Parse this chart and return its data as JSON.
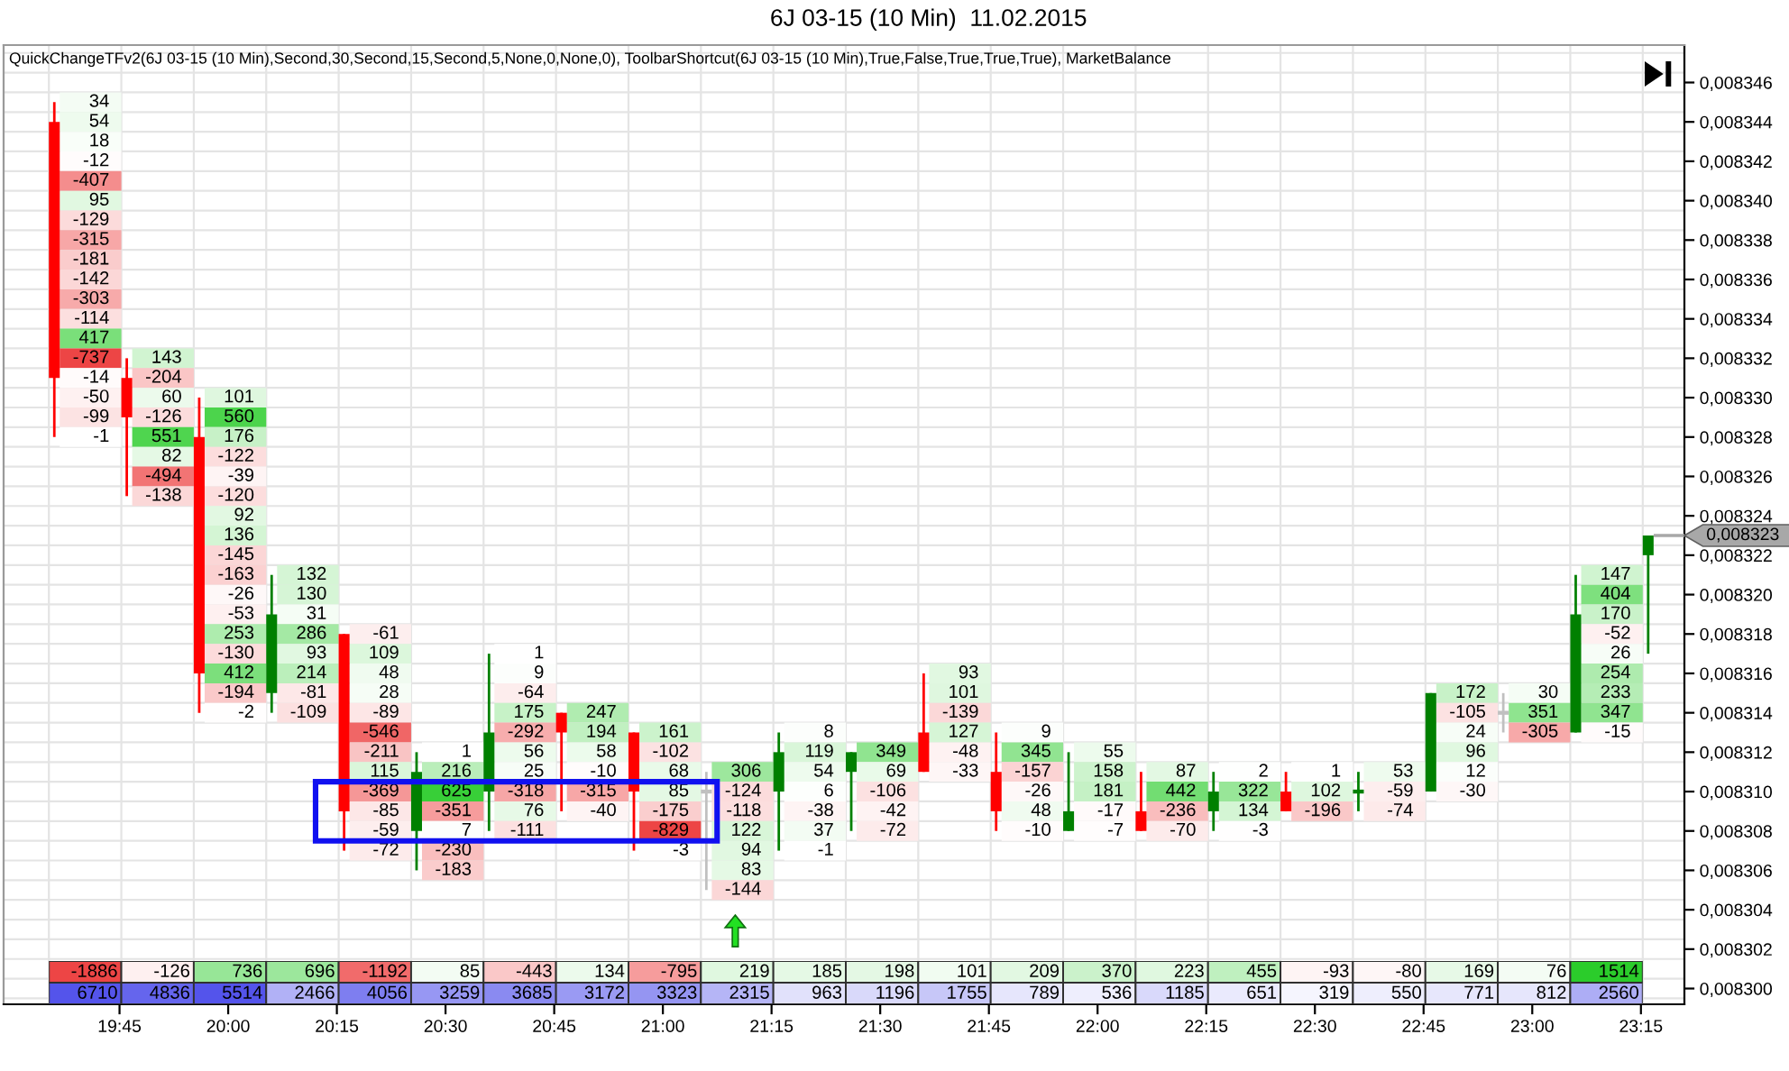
{
  "chart_data": [
    {
      "type": "candlestick",
      "title": "6J 03-15 (10 Min)  11.02.2015",
      "subtitle": "QuickChangeTFv2(6J 03-15 (10 Min),Second,30,Second,15,Second,5,None,0,None,0), ToolbarShortcut(6J 03-15 (10 Min),True,False,True,True,True), MarketBalance",
      "x": [
        "2015-02-11T19:36",
        "2015-02-11T19:46",
        "2015-02-11T19:56",
        "2015-02-11T20:06",
        "2015-02-11T20:16",
        "2015-02-11T20:26",
        "2015-02-11T20:36",
        "2015-02-11T20:46",
        "2015-02-11T20:56",
        "2015-02-11T21:06",
        "2015-02-11T21:16",
        "2015-02-11T21:26",
        "2015-02-11T21:36",
        "2015-02-11T21:46",
        "2015-02-11T21:56",
        "2015-02-11T22:06",
        "2015-02-11T22:16",
        "2015-02-11T22:26",
        "2015-02-11T22:36",
        "2015-02-11T22:46",
        "2015-02-11T22:56",
        "2015-02-11T23:06",
        "2015-02-11T23:16"
      ],
      "ohlc": [
        [
          0.008344,
          0.008345,
          0.008328,
          0.008331
        ],
        [
          0.008331,
          0.008332,
          0.008325,
          0.008329
        ],
        [
          0.008328,
          0.00833,
          0.008314,
          0.008316
        ],
        [
          0.008315,
          0.008321,
          0.008314,
          0.008319
        ],
        [
          0.008318,
          0.008318,
          0.008307,
          0.008309
        ],
        [
          0.008308,
          0.008312,
          0.008306,
          0.008311
        ],
        [
          0.00831,
          0.008317,
          0.008308,
          0.008313
        ],
        [
          0.008314,
          0.008314,
          0.008309,
          0.008313
        ],
        [
          0.008313,
          0.008313,
          0.008307,
          0.00831
        ],
        [
          0.00831,
          0.008311,
          0.008305,
          0.00831
        ],
        [
          0.00831,
          0.008313,
          0.008307,
          0.008312
        ],
        [
          0.008311,
          0.008312,
          0.008308,
          0.008312
        ],
        [
          0.008313,
          0.008316,
          0.008311,
          0.008311
        ],
        [
          0.008311,
          0.008313,
          0.008308,
          0.008309
        ],
        [
          0.008308,
          0.008312,
          0.008308,
          0.008309
        ],
        [
          0.008309,
          0.008311,
          0.008308,
          0.008308
        ],
        [
          0.008309,
          0.008311,
          0.008308,
          0.00831
        ],
        [
          0.00831,
          0.008311,
          0.008309,
          0.008309
        ],
        [
          0.00831,
          0.008311,
          0.008309,
          0.00831
        ],
        [
          0.00831,
          0.008315,
          0.00831,
          0.008315
        ],
        [
          0.008314,
          0.008315,
          0.008313,
          0.008314
        ],
        [
          0.008313,
          0.008321,
          0.008313,
          0.008319
        ],
        [
          0.008322,
          0.008323,
          0.008317,
          0.008323
        ]
      ],
      "colors": [
        "#ff0000",
        "#ff0000",
        "#ff0000",
        "#008000",
        "#ff0000",
        "#008000",
        "#008000",
        "#ff0000",
        "#ff0000",
        "#c0c0c0",
        "#008000",
        "#008000",
        "#ff0000",
        "#ff0000",
        "#008000",
        "#ff0000",
        "#008000",
        "#ff0000",
        "#008000",
        "#008000",
        "#c0c0c0",
        "#008000",
        "#008000"
      ],
      "xlim": [
        "2015-02-11T19:29",
        "2015-02-11T23:21"
      ],
      "xticks": [
        {
          "value": "2015-02-11T19:45",
          "label": "19:45"
        },
        {
          "value": "2015-02-11T20:00",
          "label": "20:00"
        },
        {
          "value": "2015-02-11T20:15",
          "label": "20:15"
        },
        {
          "value": "2015-02-11T20:30",
          "label": "20:30"
        },
        {
          "value": "2015-02-11T20:45",
          "label": "20:45"
        },
        {
          "value": "2015-02-11T21:00",
          "label": "21:00"
        },
        {
          "value": "2015-02-11T21:15",
          "label": "21:15"
        },
        {
          "value": "2015-02-11T21:30",
          "label": "21:30"
        },
        {
          "value": "2015-02-11T21:45",
          "label": "21:45"
        },
        {
          "value": "2015-02-11T22:00",
          "label": "22:00"
        },
        {
          "value": "2015-02-11T22:15",
          "label": "22:15"
        },
        {
          "value": "2015-02-11T22:30",
          "label": "22:30"
        },
        {
          "value": "2015-02-11T22:45",
          "label": "22:45"
        },
        {
          "value": "2015-02-11T23:00",
          "label": "23:00"
        },
        {
          "value": "2015-02-11T23:15",
          "label": "23:15"
        }
      ],
      "ylim": [
        0.0082992,
        0.0083479
      ],
      "yticks": [
        {
          "value": 0.0083,
          "label": "0,008300"
        },
        {
          "value": 0.008302,
          "label": "0,008302"
        },
        {
          "value": 0.008304,
          "label": "0,008304"
        },
        {
          "value": 0.008306,
          "label": "0,008306"
        },
        {
          "value": 0.008308,
          "label": "0,008308"
        },
        {
          "value": 0.00831,
          "label": "0,008310"
        },
        {
          "value": 0.008312,
          "label": "0,008312"
        },
        {
          "value": 0.008314,
          "label": "0,008314"
        },
        {
          "value": 0.008316,
          "label": "0,008316"
        },
        {
          "value": 0.008318,
          "label": "0,008318"
        },
        {
          "value": 0.00832,
          "label": "0,008320"
        },
        {
          "value": 0.008322,
          "label": "0,008322"
        },
        {
          "value": 0.008324,
          "label": "0,008324"
        },
        {
          "value": 0.008326,
          "label": "0,008326"
        },
        {
          "value": 0.008328,
          "label": "0,008328"
        },
        {
          "value": 0.00833,
          "label": "0,008330"
        },
        {
          "value": 0.008332,
          "label": "0,008332"
        },
        {
          "value": 0.008334,
          "label": "0,008334"
        },
        {
          "value": 0.008336,
          "label": "0,008336"
        },
        {
          "value": 0.008338,
          "label": "0,008338"
        },
        {
          "value": 0.00834,
          "label": "0,008340"
        },
        {
          "value": 0.008342,
          "label": "0,008342"
        },
        {
          "value": 0.008344,
          "label": "0,008344"
        },
        {
          "value": 0.008346,
          "label": "0,008346"
        }
      ],
      "grid": true,
      "ref_lines": [
        {
          "axis": "y",
          "value": 0.008323,
          "label": "0,008323",
          "color": "#a8a8a8"
        }
      ],
      "annotations": [
        {
          "text": "34",
          "x": "2015-02-11T19:36",
          "y": 0.008345
        },
        {
          "text": "54",
          "x": "2015-02-11T19:36",
          "y": 0.008344
        },
        {
          "text": "18",
          "x": "2015-02-11T19:36",
          "y": 0.008343
        },
        {
          "text": "-12",
          "x": "2015-02-11T19:36",
          "y": 0.008342
        },
        {
          "text": "-407",
          "x": "2015-02-11T19:36",
          "y": 0.008341
        },
        {
          "text": "95",
          "x": "2015-02-11T19:36",
          "y": 0.00834
        },
        {
          "text": "-129",
          "x": "2015-02-11T19:36",
          "y": 0.008339
        },
        {
          "text": "-315",
          "x": "2015-02-11T19:36",
          "y": 0.008338
        },
        {
          "text": "-181",
          "x": "2015-02-11T19:36",
          "y": 0.008337
        },
        {
          "text": "-142",
          "x": "2015-02-11T19:36",
          "y": 0.008336
        },
        {
          "text": "-303",
          "x": "2015-02-11T19:36",
          "y": 0.008335
        },
        {
          "text": "-114",
          "x": "2015-02-11T19:36",
          "y": 0.008334
        },
        {
          "text": "417",
          "x": "2015-02-11T19:36",
          "y": 0.008333
        },
        {
          "text": "-737",
          "x": "2015-02-11T19:36",
          "y": 0.008332
        },
        {
          "text": "-14",
          "x": "2015-02-11T19:36",
          "y": 0.008331
        },
        {
          "text": "-50",
          "x": "2015-02-11T19:36",
          "y": 0.00833
        },
        {
          "text": "-99",
          "x": "2015-02-11T19:36",
          "y": 0.008329
        },
        {
          "text": "-1",
          "x": "2015-02-11T19:36",
          "y": 0.008328
        },
        {
          "text": "143",
          "x": "2015-02-11T19:46",
          "y": 0.008332
        },
        {
          "text": "-204",
          "x": "2015-02-11T19:46",
          "y": 0.008331
        },
        {
          "text": "60",
          "x": "2015-02-11T19:46",
          "y": 0.00833
        },
        {
          "text": "-126",
          "x": "2015-02-11T19:46",
          "y": 0.008329
        },
        {
          "text": "551",
          "x": "2015-02-11T19:46",
          "y": 0.008328
        },
        {
          "text": "82",
          "x": "2015-02-11T19:46",
          "y": 0.008327
        },
        {
          "text": "-494",
          "x": "2015-02-11T19:46",
          "y": 0.008326
        },
        {
          "text": "-138",
          "x": "2015-02-11T19:46",
          "y": 0.008325
        },
        {
          "text": "101",
          "x": "2015-02-11T19:56",
          "y": 0.00833
        },
        {
          "text": "560",
          "x": "2015-02-11T19:56",
          "y": 0.008329
        },
        {
          "text": "176",
          "x": "2015-02-11T19:56",
          "y": 0.008328
        },
        {
          "text": "-122",
          "x": "2015-02-11T19:56",
          "y": 0.008327
        },
        {
          "text": "-39",
          "x": "2015-02-11T19:56",
          "y": 0.008326
        },
        {
          "text": "-120",
          "x": "2015-02-11T19:56",
          "y": 0.008325
        },
        {
          "text": "92",
          "x": "2015-02-11T19:56",
          "y": 0.008324
        },
        {
          "text": "136",
          "x": "2015-02-11T19:56",
          "y": 0.008323
        },
        {
          "text": "-145",
          "x": "2015-02-11T19:56",
          "y": 0.008322
        },
        {
          "text": "-163",
          "x": "2015-02-11T19:56",
          "y": 0.008321
        },
        {
          "text": "-26",
          "x": "2015-02-11T19:56",
          "y": 0.00832
        },
        {
          "text": "-53",
          "x": "2015-02-11T19:56",
          "y": 0.008319
        },
        {
          "text": "253",
          "x": "2015-02-11T19:56",
          "y": 0.008318
        },
        {
          "text": "-130",
          "x": "2015-02-11T19:56",
          "y": 0.008317
        },
        {
          "text": "412",
          "x": "2015-02-11T19:56",
          "y": 0.008316
        },
        {
          "text": "-194",
          "x": "2015-02-11T19:56",
          "y": 0.008315
        },
        {
          "text": "-2",
          "x": "2015-02-11T19:56",
          "y": 0.008314
        },
        {
          "text": "132",
          "x": "2015-02-11T20:06",
          "y": 0.008321
        },
        {
          "text": "130",
          "x": "2015-02-11T20:06",
          "y": 0.00832
        },
        {
          "text": "31",
          "x": "2015-02-11T20:06",
          "y": 0.008319
        },
        {
          "text": "286",
          "x": "2015-02-11T20:06",
          "y": 0.008318
        },
        {
          "text": "93",
          "x": "2015-02-11T20:06",
          "y": 0.008317
        },
        {
          "text": "214",
          "x": "2015-02-11T20:06",
          "y": 0.008316
        },
        {
          "text": "-81",
          "x": "2015-02-11T20:06",
          "y": 0.008315
        },
        {
          "text": "-109",
          "x": "2015-02-11T20:06",
          "y": 0.008314
        },
        {
          "text": "-61",
          "x": "2015-02-11T20:16",
          "y": 0.008318
        },
        {
          "text": "109",
          "x": "2015-02-11T20:16",
          "y": 0.008317
        },
        {
          "text": "48",
          "x": "2015-02-11T20:16",
          "y": 0.008316
        },
        {
          "text": "28",
          "x": "2015-02-11T20:16",
          "y": 0.008315
        },
        {
          "text": "-89",
          "x": "2015-02-11T20:16",
          "y": 0.008314
        },
        {
          "text": "-546",
          "x": "2015-02-11T20:16",
          "y": 0.008313
        },
        {
          "text": "-211",
          "x": "2015-02-11T20:16",
          "y": 0.008312
        },
        {
          "text": "115",
          "x": "2015-02-11T20:16",
          "y": 0.008311
        },
        {
          "text": "-369",
          "x": "2015-02-11T20:16",
          "y": 0.00831
        },
        {
          "text": "-85",
          "x": "2015-02-11T20:16",
          "y": 0.008309
        },
        {
          "text": "-59",
          "x": "2015-02-11T20:16",
          "y": 0.008308
        },
        {
          "text": "-72",
          "x": "2015-02-11T20:16",
          "y": 0.008307
        },
        {
          "text": "1",
          "x": "2015-02-11T20:26",
          "y": 0.008312
        },
        {
          "text": "216",
          "x": "2015-02-11T20:26",
          "y": 0.008311
        },
        {
          "text": "625",
          "x": "2015-02-11T20:26",
          "y": 0.00831
        },
        {
          "text": "-351",
          "x": "2015-02-11T20:26",
          "y": 0.008309
        },
        {
          "text": "7",
          "x": "2015-02-11T20:26",
          "y": 0.008308
        },
        {
          "text": "-230",
          "x": "2015-02-11T20:26",
          "y": 0.008307
        },
        {
          "text": "-183",
          "x": "2015-02-11T20:26",
          "y": 0.008306
        },
        {
          "text": "1",
          "x": "2015-02-11T20:36",
          "y": 0.008317
        },
        {
          "text": "9",
          "x": "2015-02-11T20:36",
          "y": 0.008316
        },
        {
          "text": "-64",
          "x": "2015-02-11T20:36",
          "y": 0.008315
        },
        {
          "text": "175",
          "x": "2015-02-11T20:36",
          "y": 0.008314
        },
        {
          "text": "-292",
          "x": "2015-02-11T20:36",
          "y": 0.008313
        },
        {
          "text": "56",
          "x": "2015-02-11T20:36",
          "y": 0.008312
        },
        {
          "text": "25",
          "x": "2015-02-11T20:36",
          "y": 0.008311
        },
        {
          "text": "-318",
          "x": "2015-02-11T20:36",
          "y": 0.00831
        },
        {
          "text": "76",
          "x": "2015-02-11T20:36",
          "y": 0.008309
        },
        {
          "text": "-111",
          "x": "2015-02-11T20:36",
          "y": 0.008308
        },
        {
          "text": "247",
          "x": "2015-02-11T20:46",
          "y": 0.008314
        },
        {
          "text": "194",
          "x": "2015-02-11T20:46",
          "y": 0.008313
        },
        {
          "text": "58",
          "x": "2015-02-11T20:46",
          "y": 0.008312
        },
        {
          "text": "-10",
          "x": "2015-02-11T20:46",
          "y": 0.008311
        },
        {
          "text": "-315",
          "x": "2015-02-11T20:46",
          "y": 0.00831
        },
        {
          "text": "-40",
          "x": "2015-02-11T20:46",
          "y": 0.008309
        },
        {
          "text": "161",
          "x": "2015-02-11T20:56",
          "y": 0.008313
        },
        {
          "text": "-102",
          "x": "2015-02-11T20:56",
          "y": 0.008312
        },
        {
          "text": "68",
          "x": "2015-02-11T20:56",
          "y": 0.008311
        },
        {
          "text": "85",
          "x": "2015-02-11T20:56",
          "y": 0.00831
        },
        {
          "text": "-175",
          "x": "2015-02-11T20:56",
          "y": 0.008309
        },
        {
          "text": "-829",
          "x": "2015-02-11T20:56",
          "y": 0.008308
        },
        {
          "text": "-3",
          "x": "2015-02-11T20:56",
          "y": 0.008307
        },
        {
          "text": "306",
          "x": "2015-02-11T21:06",
          "y": 0.008311
        },
        {
          "text": "-124",
          "x": "2015-02-11T21:06",
          "y": 0.00831
        },
        {
          "text": "-118",
          "x": "2015-02-11T21:06",
          "y": 0.008309
        },
        {
          "text": "122",
          "x": "2015-02-11T21:06",
          "y": 0.008308
        },
        {
          "text": "94",
          "x": "2015-02-11T21:06",
          "y": 0.008307
        },
        {
          "text": "83",
          "x": "2015-02-11T21:06",
          "y": 0.008306
        },
        {
          "text": "-144",
          "x": "2015-02-11T21:06",
          "y": 0.008305
        },
        {
          "text": "8",
          "x": "2015-02-11T21:16",
          "y": 0.008313
        },
        {
          "text": "119",
          "x": "2015-02-11T21:16",
          "y": 0.008312
        },
        {
          "text": "54",
          "x": "2015-02-11T21:16",
          "y": 0.008311
        },
        {
          "text": "6",
          "x": "2015-02-11T21:16",
          "y": 0.00831
        },
        {
          "text": "-38",
          "x": "2015-02-11T21:16",
          "y": 0.008309
        },
        {
          "text": "37",
          "x": "2015-02-11T21:16",
          "y": 0.008308
        },
        {
          "text": "-1",
          "x": "2015-02-11T21:16",
          "y": 0.008307
        },
        {
          "text": "349",
          "x": "2015-02-11T21:26",
          "y": 0.008312
        },
        {
          "text": "69",
          "x": "2015-02-11T21:26",
          "y": 0.008311
        },
        {
          "text": "-106",
          "x": "2015-02-11T21:26",
          "y": 0.00831
        },
        {
          "text": "-42",
          "x": "2015-02-11T21:26",
          "y": 0.008309
        },
        {
          "text": "-72",
          "x": "2015-02-11T21:26",
          "y": 0.008308
        },
        {
          "text": "93",
          "x": "2015-02-11T21:36",
          "y": 0.008316
        },
        {
          "text": "101",
          "x": "2015-02-11T21:36",
          "y": 0.008315
        },
        {
          "text": "-139",
          "x": "2015-02-11T21:36",
          "y": 0.008314
        },
        {
          "text": "127",
          "x": "2015-02-11T21:36",
          "y": 0.008313
        },
        {
          "text": "-48",
          "x": "2015-02-11T21:36",
          "y": 0.008312
        },
        {
          "text": "-33",
          "x": "2015-02-11T21:36",
          "y": 0.008311
        },
        {
          "text": "9",
          "x": "2015-02-11T21:46",
          "y": 0.008313
        },
        {
          "text": "345",
          "x": "2015-02-11T21:46",
          "y": 0.008312
        },
        {
          "text": "-157",
          "x": "2015-02-11T21:46",
          "y": 0.008311
        },
        {
          "text": "-26",
          "x": "2015-02-11T21:46",
          "y": 0.00831
        },
        {
          "text": "48",
          "x": "2015-02-11T21:46",
          "y": 0.008309
        },
        {
          "text": "-10",
          "x": "2015-02-11T21:46",
          "y": 0.008308
        },
        {
          "text": "55",
          "x": "2015-02-11T21:56",
          "y": 0.008312
        },
        {
          "text": "158",
          "x": "2015-02-11T21:56",
          "y": 0.008311
        },
        {
          "text": "181",
          "x": "2015-02-11T21:56",
          "y": 0.00831
        },
        {
          "text": "-17",
          "x": "2015-02-11T21:56",
          "y": 0.008309
        },
        {
          "text": "-7",
          "x": "2015-02-11T21:56",
          "y": 0.008308
        },
        {
          "text": "87",
          "x": "2015-02-11T22:06",
          "y": 0.008311
        },
        {
          "text": "442",
          "x": "2015-02-11T22:06",
          "y": 0.00831
        },
        {
          "text": "-236",
          "x": "2015-02-11T22:06",
          "y": 0.008309
        },
        {
          "text": "-70",
          "x": "2015-02-11T22:06",
          "y": 0.008308
        },
        {
          "text": "2",
          "x": "2015-02-11T22:16",
          "y": 0.008311
        },
        {
          "text": "322",
          "x": "2015-02-11T22:16",
          "y": 0.00831
        },
        {
          "text": "134",
          "x": "2015-02-11T22:16",
          "y": 0.008309
        },
        {
          "text": "-3",
          "x": "2015-02-11T22:16",
          "y": 0.008308
        },
        {
          "text": "1",
          "x": "2015-02-11T22:26",
          "y": 0.008311
        },
        {
          "text": "102",
          "x": "2015-02-11T22:26",
          "y": 0.00831
        },
        {
          "text": "-196",
          "x": "2015-02-11T22:26",
          "y": 0.008309
        },
        {
          "text": "53",
          "x": "2015-02-11T22:36",
          "y": 0.008311
        },
        {
          "text": "-59",
          "x": "2015-02-11T22:36",
          "y": 0.00831
        },
        {
          "text": "-74",
          "x": "2015-02-11T22:36",
          "y": 0.008309
        },
        {
          "text": "172",
          "x": "2015-02-11T22:46",
          "y": 0.008315
        },
        {
          "text": "-105",
          "x": "2015-02-11T22:46",
          "y": 0.008314
        },
        {
          "text": "24",
          "x": "2015-02-11T22:46",
          "y": 0.008313
        },
        {
          "text": "96",
          "x": "2015-02-11T22:46",
          "y": 0.008312
        },
        {
          "text": "12",
          "x": "2015-02-11T22:46",
          "y": 0.008311
        },
        {
          "text": "-30",
          "x": "2015-02-11T22:46",
          "y": 0.00831
        },
        {
          "text": "30",
          "x": "2015-02-11T22:56",
          "y": 0.008315
        },
        {
          "text": "351",
          "x": "2015-02-11T22:56",
          "y": 0.008314
        },
        {
          "text": "-305",
          "x": "2015-02-11T22:56",
          "y": 0.008313
        },
        {
          "text": "147",
          "x": "2015-02-11T23:06",
          "y": 0.008321
        },
        {
          "text": "404",
          "x": "2015-02-11T23:06",
          "y": 0.00832
        },
        {
          "text": "170",
          "x": "2015-02-11T23:06",
          "y": 0.008319
        },
        {
          "text": "-52",
          "x": "2015-02-11T23:06",
          "y": 0.008318
        },
        {
          "text": "26",
          "x": "2015-02-11T23:06",
          "y": 0.008317
        },
        {
          "text": "254",
          "x": "2015-02-11T23:06",
          "y": 0.008316
        },
        {
          "text": "233",
          "x": "2015-02-11T23:06",
          "y": 0.008315
        },
        {
          "text": "347",
          "x": "2015-02-11T23:06",
          "y": 0.008314
        },
        {
          "text": "-15",
          "x": "2015-02-11T23:06",
          "y": 0.008313
        }
      ]
    },
    {
      "type": "heatmap",
      "categories": [
        null,
        null,
        null,
        null,
        null,
        null,
        null,
        null,
        null,
        null,
        null,
        null,
        null,
        null,
        null,
        null,
        null,
        null,
        null,
        null,
        null,
        null
      ],
      "y_categories": [
        null,
        null
      ],
      "cells": [
        [
          -1886,
          -126,
          736,
          696,
          -1192,
          85,
          -443,
          134,
          -795,
          219,
          185,
          198,
          101,
          209,
          370,
          223,
          455,
          -93,
          -80,
          169,
          76,
          1514
        ],
        [
          6710,
          4836,
          5514,
          2466,
          4056,
          3259,
          3685,
          3172,
          3323,
          2315,
          963,
          1196,
          1755,
          789,
          536,
          1185,
          651,
          319,
          550,
          771,
          812,
          2560
        ]
      ],
      "data_labels": true
    }
  ]
}
